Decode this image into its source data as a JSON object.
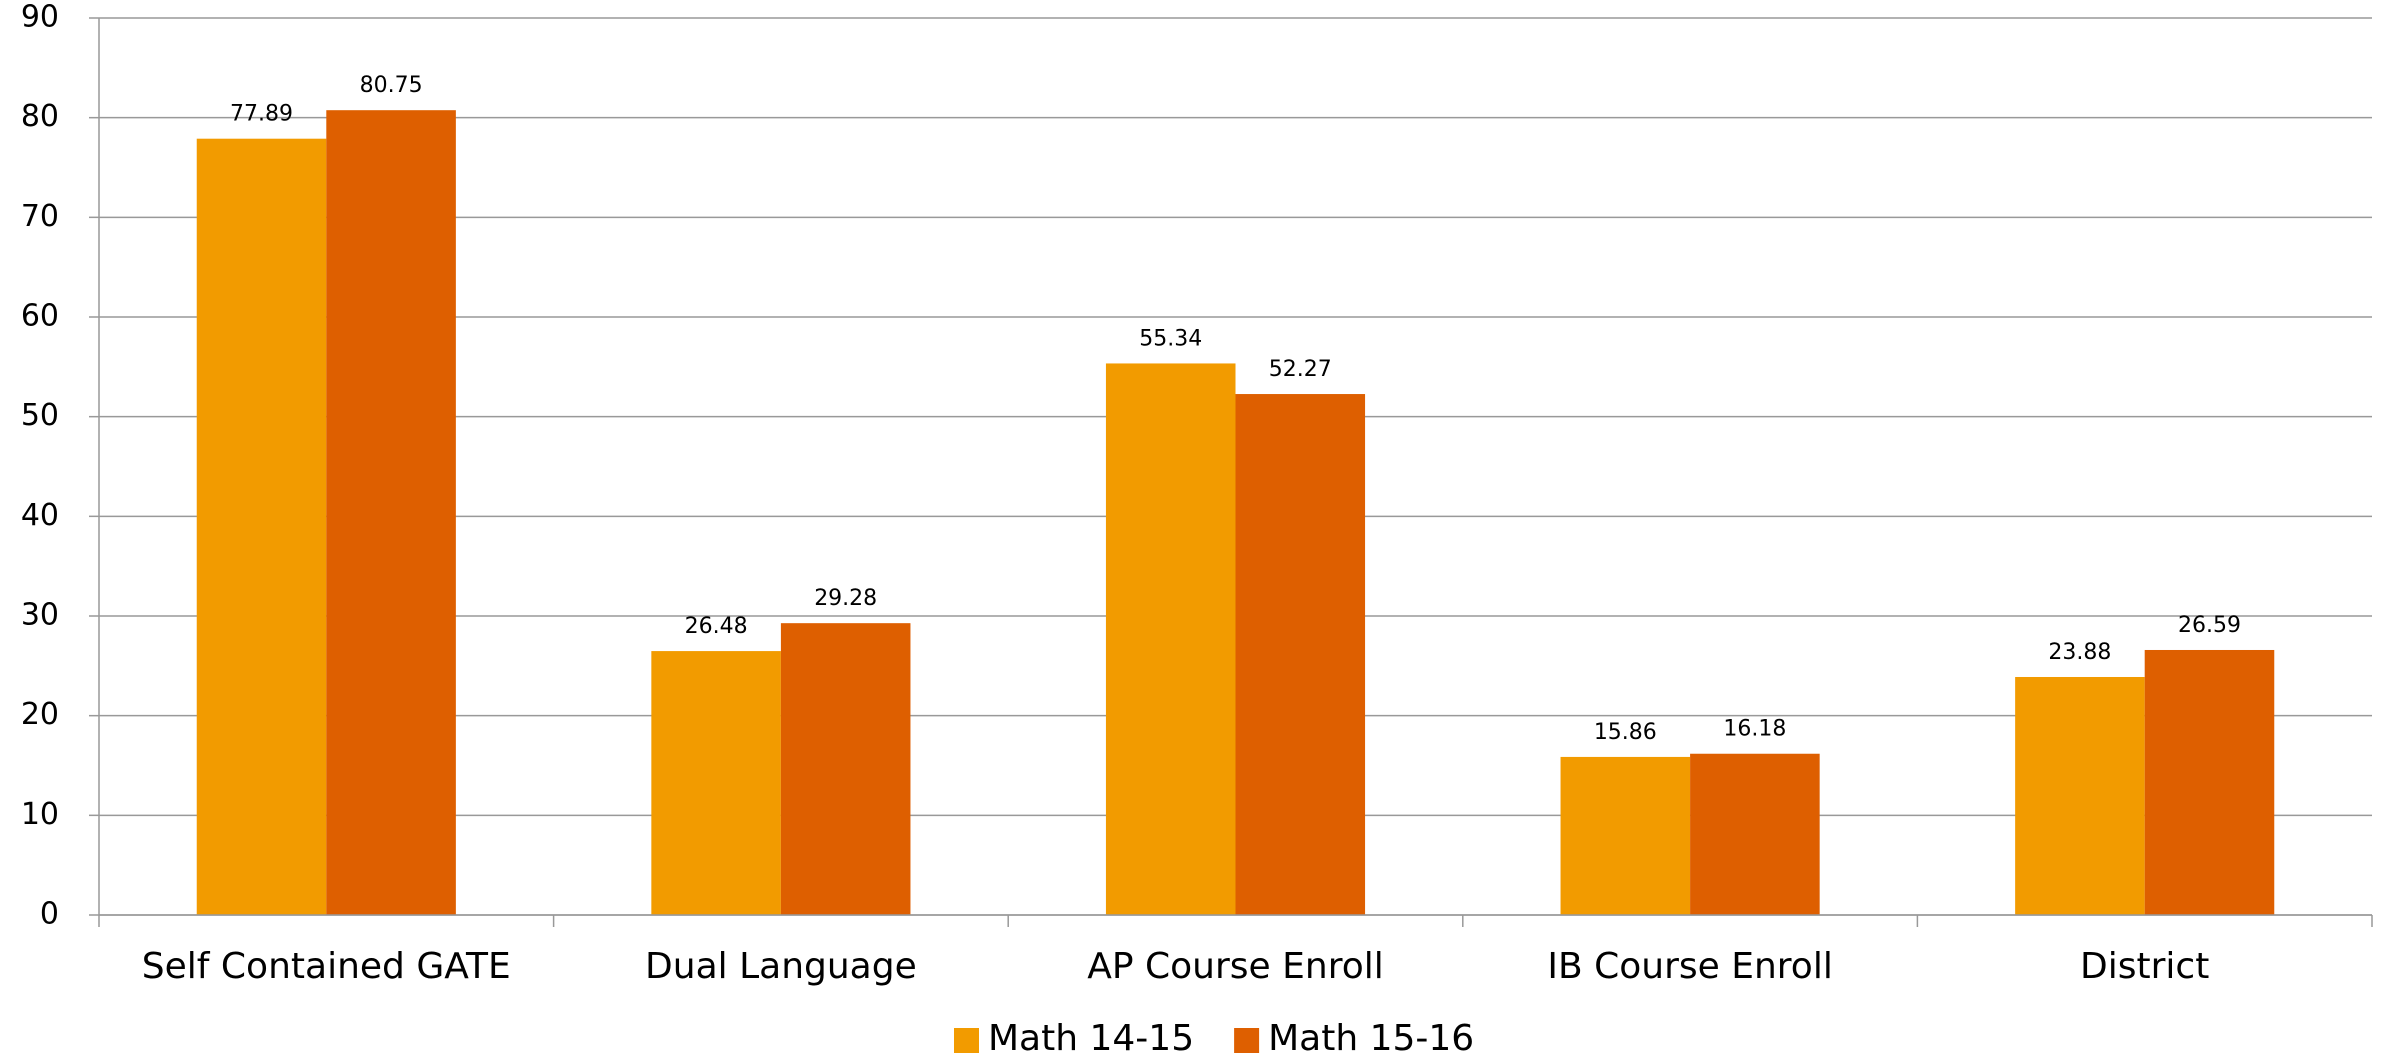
{
  "chart_data": {
    "type": "bar",
    "categories": [
      "Self Contained GATE",
      "Dual Language",
      "AP Course Enroll",
      "IB Course Enroll",
      "District"
    ],
    "series": [
      {
        "name": "Math 14-15",
        "color": "#f29b00",
        "values": [
          77.89,
          26.48,
          55.34,
          15.86,
          23.88
        ]
      },
      {
        "name": "Math 15-16",
        "color": "#de5f00",
        "values": [
          80.75,
          29.28,
          52.27,
          16.18,
          26.59
        ]
      }
    ],
    "ylim": [
      0,
      90
    ],
    "yticks": [
      0,
      10,
      20,
      30,
      40,
      50,
      60,
      70,
      80,
      90
    ],
    "grid": true,
    "legend": "bottom"
  }
}
